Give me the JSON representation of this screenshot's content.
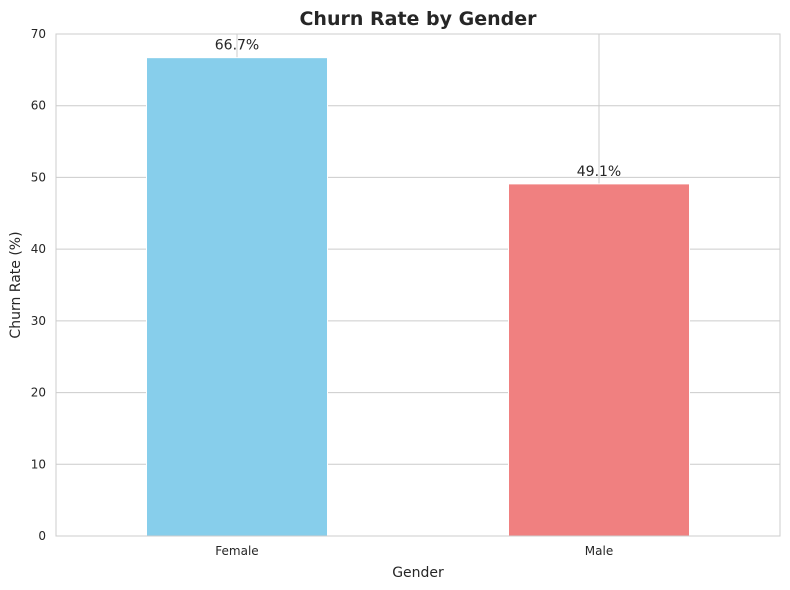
{
  "chart_data": {
    "type": "bar",
    "title": "Churn Rate by Gender",
    "xlabel": "Gender",
    "ylabel": "Churn Rate (%)",
    "categories": [
      "Female",
      "Male"
    ],
    "values": [
      66.7,
      49.1
    ],
    "data_labels": [
      "66.7%",
      "49.1%"
    ],
    "colors": [
      "#87ceeb",
      "#f08080"
    ],
    "ylim": [
      0,
      70
    ],
    "yticks": [
      0,
      10,
      20,
      30,
      40,
      50,
      60,
      70
    ],
    "ytick_labels": [
      "0",
      "10",
      "20",
      "30",
      "40",
      "50",
      "60",
      "70"
    ],
    "grid": true,
    "legend": "none"
  }
}
